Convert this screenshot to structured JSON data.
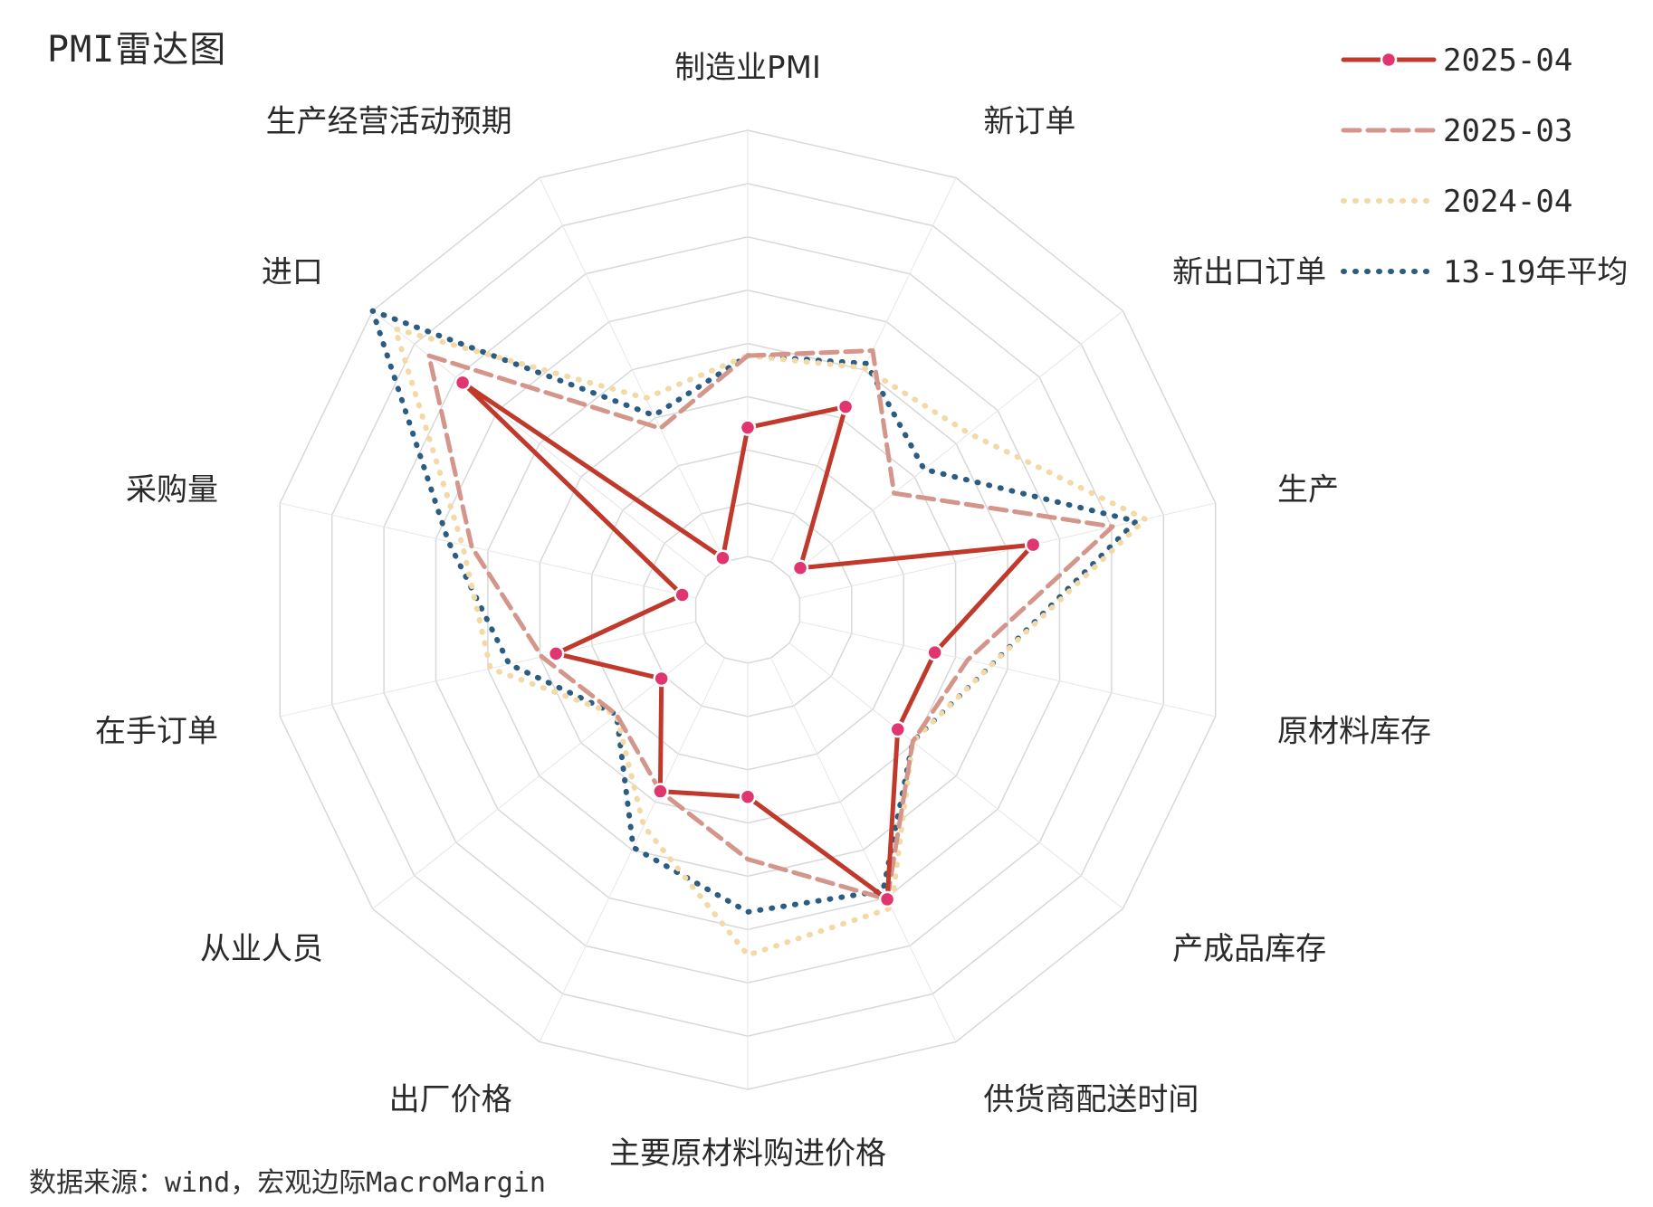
{
  "title": "PMI雷达图",
  "source": "数据来源：wind，宏观边际MacroMargin",
  "chart_data": {
    "type": "radar",
    "axes": [
      "制造业PMI",
      "新订单",
      "新出口订单",
      "生产",
      "原材料库存",
      "产成品库存",
      "供货商配送时间",
      "主要原材料购进价格",
      "出厂价格",
      "从业人员",
      "在手订单",
      "采购量",
      "进口",
      "生产经营活动预期"
    ],
    "rings": 9,
    "grid": true,
    "legend_position": "top-right",
    "series": [
      {
        "name": "2025-04",
        "color": "#c0392b",
        "dash": "solid",
        "markers": true,
        "values": [
          0.38,
          0.47,
          0.14,
          0.61,
          0.4,
          0.4,
          0.67,
          0.39,
          0.42,
          0.23,
          0.41,
          0.14,
          0.76,
          0.12
        ]
      },
      {
        "name": "2025-03",
        "color": "#d4958a",
        "dash": "dashed",
        "markers": false,
        "values": [
          0.53,
          0.6,
          0.39,
          0.78,
          0.47,
          0.44,
          0.67,
          0.52,
          0.42,
          0.35,
          0.44,
          0.59,
          0.85,
          0.42
        ]
      },
      {
        "name": "2024-04",
        "color": "#f2d9a5",
        "dash": "dotted",
        "markers": false,
        "values": [
          0.53,
          0.56,
          0.59,
          0.85,
          0.52,
          0.44,
          0.69,
          0.72,
          0.5,
          0.35,
          0.55,
          0.61,
          0.94,
          0.49
        ]
      },
      {
        "name": "13-19年平均",
        "color": "#2b5c82",
        "dash": "dotted",
        "markers": false,
        "values": [
          0.53,
          0.57,
          0.47,
          0.83,
          0.52,
          0.44,
          0.65,
          0.63,
          0.55,
          0.35,
          0.51,
          0.64,
          1.0,
          0.45
        ]
      }
    ]
  }
}
